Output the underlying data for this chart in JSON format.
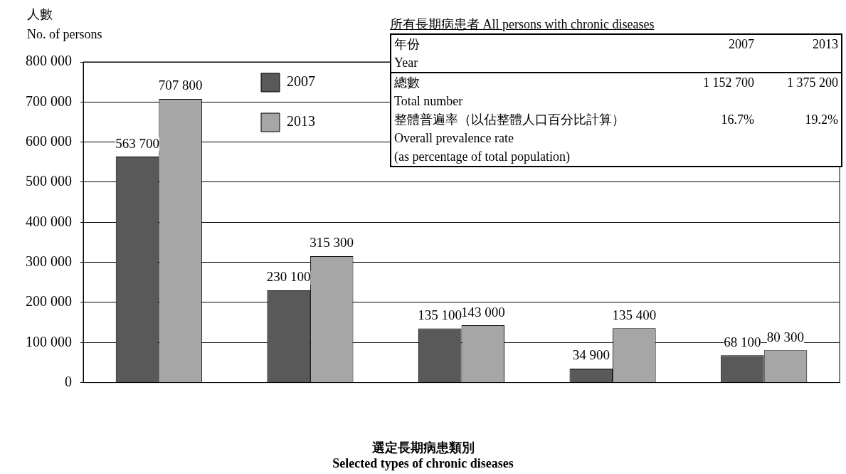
{
  "chart_data": {
    "type": "bar",
    "ylabel": "人數\nNo. of persons",
    "xlabel": "選定長期病患類別\nSelected types of chronic diseases",
    "categories": [
      null,
      null,
      null,
      null,
      null
    ],
    "series": [
      {
        "name": "2007",
        "color": "#595959",
        "values": [
          563700,
          230100,
          135100,
          34900,
          68100
        ],
        "value_labels": [
          "563 700",
          "230 100",
          "135 100",
          "34 900",
          "68 100"
        ]
      },
      {
        "name": "2013",
        "color": "#a6a6a6",
        "values": [
          707800,
          315300,
          143000,
          135400,
          80300
        ],
        "value_labels": [
          "707 800",
          "315 300",
          "143 000",
          "135 400",
          "80 300"
        ]
      }
    ],
    "ylim": [
      0,
      800000
    ],
    "yticks": [
      0,
      {
        "value": 100000,
        "label": "100 000"
      },
      {
        "value": 200000,
        "label": "200 000"
      },
      {
        "value": 300000,
        "label": "300 000"
      },
      {
        "value": 400000,
        "label": "400 000"
      },
      {
        "value": 500000,
        "label": "500 000"
      },
      {
        "value": 600000,
        "label": "600 000"
      },
      {
        "value": 700000,
        "label": "700 000"
      },
      {
        "value": 800000,
        "label": "800 000"
      }
    ],
    "grid": "y",
    "legend": "top left",
    "annotations": [
      "所有長期病患者  All persons with chronic diseases",
      "年份\nYear",
      "2007",
      "2013",
      "總數\nTotal number",
      "1 152 700",
      "1 375 200",
      "整體普遍率（以佔整體人口百分比計算）\nOverall prevalence rate\n(as percentage of total population)",
      "16.7%",
      "19.2%"
    ]
  }
}
